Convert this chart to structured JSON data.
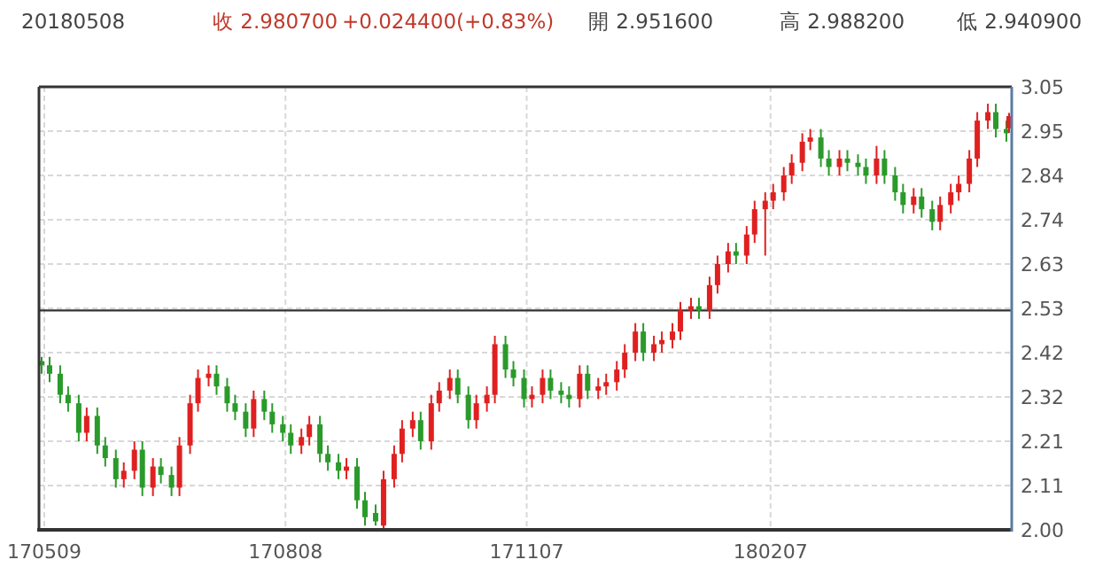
{
  "chart_data": {
    "type": "candlestick",
    "annotations": [
      "20180508",
      "收 2.980700",
      "+0.024400(+0.83%)",
      "開 2.951600",
      "高 2.988200",
      "低 2.940900"
    ],
    "xlim": [
      "2017-05-07",
      "2018-05-09"
    ],
    "xticks": [
      {
        "value": "2017-05-09",
        "label": "170509"
      },
      {
        "value": "2017-08-08",
        "label": "170808"
      },
      {
        "value": "2017-11-07",
        "label": "171107"
      },
      {
        "value": "2018-02-07",
        "label": "180207"
      }
    ],
    "ylim": [
      2.0,
      3.05
    ],
    "yticks": [
      {
        "value": 2.0,
        "label": "2.00"
      },
      {
        "value": 2.105,
        "label": "2.11"
      },
      {
        "value": 2.21,
        "label": "2.21"
      },
      {
        "value": 2.315,
        "label": "2.32"
      },
      {
        "value": 2.42,
        "label": "2.42"
      },
      {
        "value": 2.525,
        "label": "2.53"
      },
      {
        "value": 2.63,
        "label": "2.63"
      },
      {
        "value": 2.735,
        "label": "2.74"
      },
      {
        "value": 2.84,
        "label": "2.84"
      },
      {
        "value": 2.945,
        "label": "2.95"
      },
      {
        "value": 3.05,
        "label": "3.05"
      }
    ],
    "grid": true,
    "ref_lines": [
      {
        "axis": "y",
        "value": 2.52,
        "color": "#333333"
      }
    ],
    "x": [
      "2017-05-08",
      "2017-05-11",
      "2017-05-15",
      "2017-05-18",
      "2017-05-22",
      "2017-05-25",
      "2017-05-29",
      "2017-06-01",
      "2017-06-05",
      "2017-06-08",
      "2017-06-12",
      "2017-06-15",
      "2017-06-19",
      "2017-06-22",
      "2017-06-26",
      "2017-06-29",
      "2017-07-03",
      "2017-07-06",
      "2017-07-10",
      "2017-07-13",
      "2017-07-17",
      "2017-07-20",
      "2017-07-24",
      "2017-07-27",
      "2017-07-31",
      "2017-08-03",
      "2017-08-07",
      "2017-08-10",
      "2017-08-14",
      "2017-08-17",
      "2017-08-21",
      "2017-08-24",
      "2017-08-28",
      "2017-08-31",
      "2017-09-04",
      "2017-09-07",
      "2017-09-11",
      "2017-09-14",
      "2017-09-18",
      "2017-09-21",
      "2017-09-25",
      "2017-09-28",
      "2017-10-02",
      "2017-10-05",
      "2017-10-09",
      "2017-10-12",
      "2017-10-16",
      "2017-10-19",
      "2017-10-23",
      "2017-10-26",
      "2017-10-30",
      "2017-11-02",
      "2017-11-06",
      "2017-11-09",
      "2017-11-13",
      "2017-11-16",
      "2017-11-20",
      "2017-11-23",
      "2017-11-27",
      "2017-11-30",
      "2017-12-04",
      "2017-12-07",
      "2017-12-11",
      "2017-12-14",
      "2017-12-18",
      "2017-12-21",
      "2017-12-25",
      "2017-12-28",
      "2018-01-01",
      "2018-01-04",
      "2018-01-08",
      "2018-01-11",
      "2018-01-15",
      "2018-01-18",
      "2018-01-22",
      "2018-01-25",
      "2018-01-29",
      "2018-02-01",
      "2018-02-05",
      "2018-02-08",
      "2018-02-12",
      "2018-02-15",
      "2018-02-19",
      "2018-02-22",
      "2018-02-26",
      "2018-03-01",
      "2018-03-05",
      "2018-03-08",
      "2018-03-12",
      "2018-03-15",
      "2018-03-19",
      "2018-03-22",
      "2018-03-26",
      "2018-03-29",
      "2018-04-02",
      "2018-04-05",
      "2018-04-09",
      "2018-04-12",
      "2018-04-16",
      "2018-04-19",
      "2018-04-23",
      "2018-04-26",
      "2018-04-30",
      "2018-05-03",
      "2018-05-07",
      "2018-05-08"
    ],
    "ohlc": [
      [
        2.4,
        2.41,
        2.37,
        2.39
      ],
      [
        2.39,
        2.41,
        2.35,
        2.37
      ],
      [
        2.37,
        2.39,
        2.3,
        2.32
      ],
      [
        2.32,
        2.34,
        2.28,
        2.3
      ],
      [
        2.3,
        2.32,
        2.21,
        2.23
      ],
      [
        2.23,
        2.29,
        2.21,
        2.27
      ],
      [
        2.27,
        2.29,
        2.18,
        2.2
      ],
      [
        2.2,
        2.22,
        2.15,
        2.17
      ],
      [
        2.17,
        2.19,
        2.1,
        2.12
      ],
      [
        2.12,
        2.16,
        2.1,
        2.14
      ],
      [
        2.14,
        2.21,
        2.12,
        2.19
      ],
      [
        2.19,
        2.21,
        2.08,
        2.1
      ],
      [
        2.1,
        2.17,
        2.08,
        2.15
      ],
      [
        2.15,
        2.17,
        2.11,
        2.13
      ],
      [
        2.13,
        2.15,
        2.08,
        2.1
      ],
      [
        2.1,
        2.22,
        2.08,
        2.2
      ],
      [
        2.2,
        2.32,
        2.18,
        2.3
      ],
      [
        2.3,
        2.38,
        2.28,
        2.36
      ],
      [
        2.36,
        2.39,
        2.34,
        2.37
      ],
      [
        2.37,
        2.39,
        2.32,
        2.34
      ],
      [
        2.34,
        2.36,
        2.28,
        2.3
      ],
      [
        2.3,
        2.32,
        2.26,
        2.28
      ],
      [
        2.28,
        2.3,
        2.22,
        2.24
      ],
      [
        2.24,
        2.33,
        2.22,
        2.31
      ],
      [
        2.31,
        2.33,
        2.26,
        2.28
      ],
      [
        2.28,
        2.3,
        2.23,
        2.25
      ],
      [
        2.25,
        2.27,
        2.21,
        2.23
      ],
      [
        2.23,
        2.25,
        2.18,
        2.2
      ],
      [
        2.2,
        2.24,
        2.18,
        2.22
      ],
      [
        2.22,
        2.27,
        2.2,
        2.25
      ],
      [
        2.25,
        2.27,
        2.16,
        2.18
      ],
      [
        2.18,
        2.2,
        2.14,
        2.16
      ],
      [
        2.16,
        2.18,
        2.12,
        2.14
      ],
      [
        2.14,
        2.17,
        2.12,
        2.15
      ],
      [
        2.15,
        2.17,
        2.05,
        2.07
      ],
      [
        2.07,
        2.09,
        2.01,
        2.03
      ],
      [
        2.04,
        2.06,
        2.01,
        2.02
      ],
      [
        2.01,
        2.14,
        2.0,
        2.12
      ],
      [
        2.12,
        2.2,
        2.1,
        2.18
      ],
      [
        2.18,
        2.26,
        2.16,
        2.24
      ],
      [
        2.24,
        2.28,
        2.22,
        2.26
      ],
      [
        2.26,
        2.28,
        2.19,
        2.21
      ],
      [
        2.21,
        2.32,
        2.19,
        2.3
      ],
      [
        2.3,
        2.35,
        2.28,
        2.33
      ],
      [
        2.33,
        2.38,
        2.31,
        2.36
      ],
      [
        2.36,
        2.38,
        2.3,
        2.32
      ],
      [
        2.32,
        2.34,
        2.24,
        2.26
      ],
      [
        2.26,
        2.32,
        2.24,
        2.3
      ],
      [
        2.3,
        2.34,
        2.28,
        2.32
      ],
      [
        2.32,
        2.46,
        2.3,
        2.44
      ],
      [
        2.44,
        2.46,
        2.36,
        2.38
      ],
      [
        2.38,
        2.4,
        2.34,
        2.36
      ],
      [
        2.36,
        2.38,
        2.29,
        2.31
      ],
      [
        2.31,
        2.34,
        2.29,
        2.32
      ],
      [
        2.32,
        2.38,
        2.3,
        2.36
      ],
      [
        2.36,
        2.38,
        2.31,
        2.33
      ],
      [
        2.33,
        2.35,
        2.3,
        2.32
      ],
      [
        2.32,
        2.34,
        2.29,
        2.31
      ],
      [
        2.31,
        2.39,
        2.29,
        2.37
      ],
      [
        2.37,
        2.39,
        2.31,
        2.33
      ],
      [
        2.33,
        2.36,
        2.31,
        2.34
      ],
      [
        2.34,
        2.37,
        2.32,
        2.35
      ],
      [
        2.35,
        2.4,
        2.33,
        2.38
      ],
      [
        2.38,
        2.44,
        2.36,
        2.42
      ],
      [
        2.42,
        2.49,
        2.4,
        2.47
      ],
      [
        2.47,
        2.49,
        2.4,
        2.42
      ],
      [
        2.42,
        2.46,
        2.4,
        2.44
      ],
      [
        2.44,
        2.47,
        2.42,
        2.45
      ],
      [
        2.45,
        2.49,
        2.43,
        2.47
      ],
      [
        2.47,
        2.54,
        2.45,
        2.52
      ],
      [
        2.52,
        2.55,
        2.5,
        2.53
      ],
      [
        2.53,
        2.55,
        2.5,
        2.52
      ],
      [
        2.52,
        2.6,
        2.5,
        2.58
      ],
      [
        2.58,
        2.65,
        2.56,
        2.63
      ],
      [
        2.63,
        2.68,
        2.61,
        2.66
      ],
      [
        2.66,
        2.68,
        2.63,
        2.65
      ],
      [
        2.65,
        2.72,
        2.63,
        2.7
      ],
      [
        2.7,
        2.78,
        2.68,
        2.76
      ],
      [
        2.76,
        2.8,
        2.65,
        2.78
      ],
      [
        2.78,
        2.82,
        2.76,
        2.8
      ],
      [
        2.8,
        2.86,
        2.78,
        2.84
      ],
      [
        2.84,
        2.89,
        2.82,
        2.87
      ],
      [
        2.87,
        2.94,
        2.85,
        2.92
      ],
      [
        2.92,
        2.95,
        2.9,
        2.93
      ],
      [
        2.93,
        2.95,
        2.86,
        2.88
      ],
      [
        2.88,
        2.9,
        2.84,
        2.86
      ],
      [
        2.86,
        2.9,
        2.84,
        2.88
      ],
      [
        2.88,
        2.9,
        2.85,
        2.87
      ],
      [
        2.87,
        2.89,
        2.84,
        2.86
      ],
      [
        2.86,
        2.88,
        2.82,
        2.84
      ],
      [
        2.84,
        2.91,
        2.82,
        2.88
      ],
      [
        2.88,
        2.9,
        2.82,
        2.84
      ],
      [
        2.84,
        2.86,
        2.78,
        2.8
      ],
      [
        2.8,
        2.82,
        2.75,
        2.77
      ],
      [
        2.77,
        2.81,
        2.75,
        2.79
      ],
      [
        2.79,
        2.81,
        2.74,
        2.76
      ],
      [
        2.76,
        2.78,
        2.71,
        2.73
      ],
      [
        2.73,
        2.79,
        2.71,
        2.77
      ],
      [
        2.77,
        2.82,
        2.75,
        2.8
      ],
      [
        2.8,
        2.84,
        2.78,
        2.82
      ],
      [
        2.82,
        2.9,
        2.8,
        2.88
      ],
      [
        2.88,
        2.99,
        2.86,
        2.97
      ],
      [
        2.97,
        3.01,
        2.95,
        2.99
      ],
      [
        2.99,
        3.01,
        2.93,
        2.95
      ],
      [
        2.95,
        2.97,
        2.92,
        2.94
      ],
      [
        2.9516,
        2.9882,
        2.9409,
        2.9807
      ]
    ],
    "colors": [
      "#2a9a2a",
      "#2a9a2a",
      "#2a9a2a",
      "#2a9a2a",
      "#2a9a2a",
      "#e02020",
      "#2a9a2a",
      "#2a9a2a",
      "#2a9a2a",
      "#e02020",
      "#e02020",
      "#2a9a2a",
      "#e02020",
      "#2a9a2a",
      "#2a9a2a",
      "#e02020",
      "#e02020",
      "#e02020",
      "#e02020",
      "#2a9a2a",
      "#2a9a2a",
      "#2a9a2a",
      "#2a9a2a",
      "#e02020",
      "#2a9a2a",
      "#2a9a2a",
      "#2a9a2a",
      "#2a9a2a",
      "#e02020",
      "#e02020",
      "#2a9a2a",
      "#2a9a2a",
      "#2a9a2a",
      "#e02020",
      "#2a9a2a",
      "#2a9a2a",
      "#2a9a2a",
      "#e02020",
      "#e02020",
      "#e02020",
      "#e02020",
      "#2a9a2a",
      "#e02020",
      "#e02020",
      "#e02020",
      "#2a9a2a",
      "#2a9a2a",
      "#e02020",
      "#e02020",
      "#e02020",
      "#2a9a2a",
      "#2a9a2a",
      "#2a9a2a",
      "#e02020",
      "#e02020",
      "#2a9a2a",
      "#2a9a2a",
      "#2a9a2a",
      "#e02020",
      "#2a9a2a",
      "#e02020",
      "#e02020",
      "#e02020",
      "#e02020",
      "#e02020",
      "#2a9a2a",
      "#e02020",
      "#e02020",
      "#e02020",
      "#e02020",
      "#e02020",
      "#2a9a2a",
      "#e02020",
      "#e02020",
      "#e02020",
      "#2a9a2a",
      "#e02020",
      "#e02020",
      "#e02020",
      "#e02020",
      "#e02020",
      "#e02020",
      "#e02020",
      "#e02020",
      "#2a9a2a",
      "#2a9a2a",
      "#e02020",
      "#2a9a2a",
      "#2a9a2a",
      "#2a9a2a",
      "#e02020",
      "#2a9a2a",
      "#2a9a2a",
      "#2a9a2a",
      "#e02020",
      "#2a9a2a",
      "#2a9a2a",
      "#e02020",
      "#e02020",
      "#e02020",
      "#e02020",
      "#e02020",
      "#e02020",
      "#2a9a2a",
      "#2a9a2a",
      "#e02020"
    ]
  }
}
